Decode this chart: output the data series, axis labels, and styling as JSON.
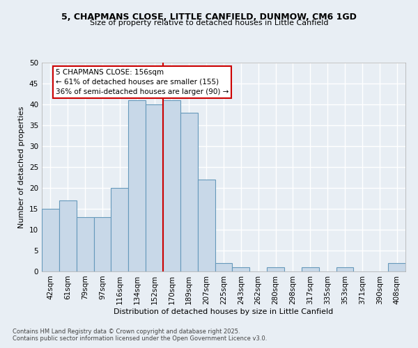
{
  "title_line1": "5, CHAPMANS CLOSE, LITTLE CANFIELD, DUNMOW, CM6 1GD",
  "title_line2": "Size of property relative to detached houses in Little Canfield",
  "xlabel": "Distribution of detached houses by size in Little Canfield",
  "ylabel": "Number of detached properties",
  "footnote1": "Contains HM Land Registry data © Crown copyright and database right 2025.",
  "footnote2": "Contains public sector information licensed under the Open Government Licence v3.0.",
  "bin_labels": [
    "42sqm",
    "61sqm",
    "79sqm",
    "97sqm",
    "116sqm",
    "134sqm",
    "152sqm",
    "170sqm",
    "189sqm",
    "207sqm",
    "225sqm",
    "243sqm",
    "262sqm",
    "280sqm",
    "298sqm",
    "317sqm",
    "335sqm",
    "353sqm",
    "371sqm",
    "390sqm",
    "408sqm"
  ],
  "bar_values": [
    15,
    17,
    13,
    13,
    20,
    41,
    40,
    41,
    38,
    22,
    2,
    1,
    0,
    1,
    0,
    1,
    0,
    1,
    0,
    0,
    2
  ],
  "bar_color": "#c8d8e8",
  "bar_edge_color": "#6699bb",
  "vline_color": "#cc0000",
  "annotation_text": "5 CHAPMANS CLOSE: 156sqm\n← 61% of detached houses are smaller (155)\n36% of semi-detached houses are larger (90) →",
  "annotation_box_color": "#cc0000",
  "bg_color": "#e8eef4",
  "grid_color": "#ffffff",
  "ylim": [
    0,
    50
  ],
  "yticks": [
    0,
    5,
    10,
    15,
    20,
    25,
    30,
    35,
    40,
    45,
    50
  ]
}
